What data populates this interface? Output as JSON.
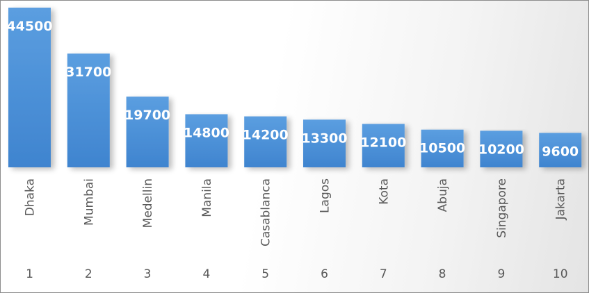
{
  "chart_data": {
    "type": "bar",
    "categories": [
      "Dhaka",
      "Mumbai",
      "Medellin",
      "Manila",
      "Casablanca",
      "Lagos",
      "Kota",
      "Abuja",
      "Singapore",
      "Jakarta"
    ],
    "ranks": [
      "1",
      "2",
      "3",
      "4",
      "5",
      "6",
      "7",
      "8",
      "9",
      "10"
    ],
    "values": [
      44500,
      31700,
      19700,
      14800,
      14200,
      13300,
      12100,
      10500,
      10200,
      9600
    ],
    "value_labels": [
      "44500",
      "31700",
      "19700",
      "14800",
      "14200",
      "13300",
      "12100",
      "10500",
      "10200",
      "9600"
    ],
    "title": "",
    "xlabel": "",
    "ylabel": "",
    "ylim": [
      0,
      44500
    ],
    "grid": false,
    "legend": "none",
    "bar_color": "#4a90d9",
    "bar_color_dark": "#3a7cc4"
  }
}
